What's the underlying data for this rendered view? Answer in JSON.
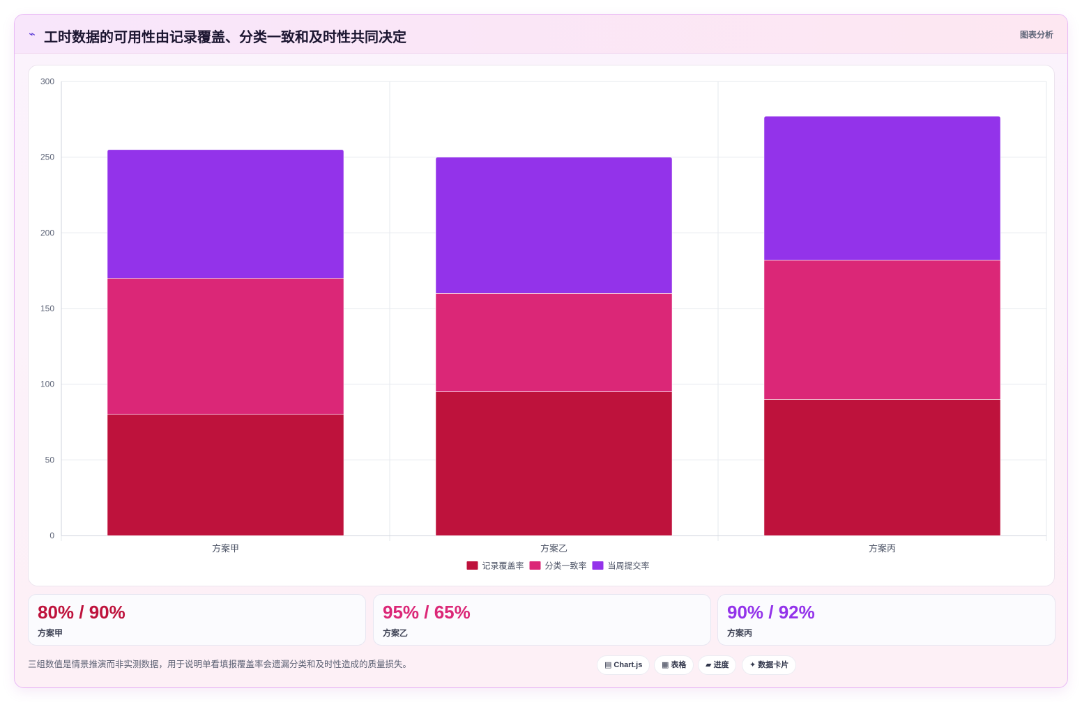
{
  "header": {
    "icon": "lightning-icon",
    "title": "工时数据的可用性由记录覆盖、分类一致和及时性共同决定",
    "tag": "图表分析"
  },
  "chart_data": {
    "type": "bar",
    "stacked": true,
    "categories": [
      "方案甲",
      "方案乙",
      "方案丙"
    ],
    "series": [
      {
        "name": "记录覆盖率",
        "values": [
          80,
          95,
          90
        ],
        "color": "#be123c"
      },
      {
        "name": "分类一致率",
        "values": [
          90,
          65,
          92
        ],
        "color": "#db2777"
      },
      {
        "name": "当周提交率",
        "values": [
          85,
          90,
          95
        ],
        "color": "#9333ea"
      }
    ],
    "ylim": [
      0,
      300
    ],
    "yticks": [
      0,
      50,
      100,
      150,
      200,
      250,
      300
    ],
    "grid": true,
    "legend": "bottom"
  },
  "stats": [
    {
      "value": "80% / 90%",
      "label": "方案甲",
      "color": "#be123c"
    },
    {
      "value": "95% / 65%",
      "label": "方案乙",
      "color": "#db2777"
    },
    {
      "value": "90% / 92%",
      "label": "方案丙",
      "color": "#9333ea"
    }
  ],
  "footnote": "三组数值是情景推演而非实测数据，用于说明单看填报覆盖率会遗漏分类和及时性造成的质量损失。",
  "pills": [
    {
      "icon": "chart-icon",
      "glyph": "▤",
      "label": "Chart.js"
    },
    {
      "icon": "table-icon",
      "glyph": "▦",
      "label": "表格"
    },
    {
      "icon": "progress-icon",
      "glyph": "▰",
      "label": "进度"
    },
    {
      "icon": "sparkle-icon",
      "glyph": "✦",
      "label": "数据卡片"
    }
  ]
}
